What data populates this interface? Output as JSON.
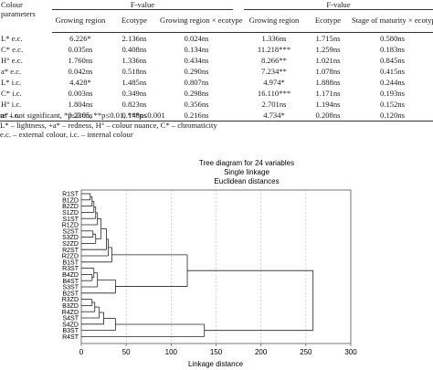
{
  "table": {
    "param_header": "Colour parameters",
    "group_header_1": "F-value",
    "group_header_2": "F-value",
    "columns_1": [
      "Growing region",
      "Ecotype",
      "Growing region × ecotype"
    ],
    "columns_2": [
      "Growing region",
      "Ecotype",
      "Stage of maturity × ecotype"
    ],
    "rows": [
      {
        "param": "L* e.c.",
        "v": [
          "6.226*",
          "2.136ns",
          "0.024ns",
          "1.336ns",
          "1.715ns",
          "0.580ns"
        ]
      },
      {
        "param": "C* e.c.",
        "v": [
          "0.035ns",
          "0.408ns",
          "0.134ns",
          "11.218***",
          "1.259ns",
          "0.183ns"
        ]
      },
      {
        "param": "H° e.c.",
        "v": [
          "1.760ns",
          "1.336ns",
          "0.434ns",
          "8.266**",
          "1.021ns",
          "0.845ns"
        ]
      },
      {
        "param": "a* e.c.",
        "v": [
          "0.042ns",
          "0.518ns",
          "0.290ns",
          "7.234**",
          "1.078ns",
          "0.415ns"
        ]
      },
      {
        "param": "L* i.c.",
        "v": [
          "4.428*",
          "1.485ns",
          "0.807ns",
          "4.974*",
          "1.888ns",
          "0.244ns"
        ]
      },
      {
        "param": "C* i.c.",
        "v": [
          "0.003ns",
          "0.349ns",
          "0.298ns",
          "16.110***",
          "1.171ns",
          "0.193ns"
        ]
      },
      {
        "param": "H° i.c.",
        "v": [
          "1.804ns",
          "0.823ns",
          "0.356ns",
          "2.701ns",
          "1.194ns",
          "0.152ns"
        ]
      },
      {
        "param": "a* i.c.",
        "v": [
          "0.236ns",
          "0.148ns",
          "0.216ns",
          "4.734*",
          "0.208ns",
          "0.120ns"
        ]
      }
    ]
  },
  "notes": {
    "line1": "ns – not significant, *p≤0.05, **p≤0.01, ***p≤0.001",
    "line2": "L* – lightness, +a* – redness, H° – colour nuance, C* – chromaticity",
    "line3": "e.c. – external colour, i.c. – internal colour"
  },
  "chart_data": {
    "type": "dendrogram",
    "title": "Tree diagram for 24 variables",
    "subtitle1": "Single linkage",
    "subtitle2": "Euclidean distances",
    "xlabel": "Linkage distance",
    "xlim": [
      0,
      300
    ],
    "x_ticks": [
      0,
      50,
      100,
      150,
      200,
      250,
      300
    ],
    "leaves": [
      "R1ST",
      "B1ZD",
      "B2ZD",
      "S1ZD",
      "S1ST",
      "R1ZD",
      "S2ST",
      "S3ZD",
      "S2ZD",
      "R2ST",
      "R2ZD",
      "B1ST",
      "R3ST",
      "B4ZD",
      "B4ST",
      "S3ST",
      "B2ST",
      "R3ZD",
      "B3ZD",
      "R4ZD",
      "S4ST",
      "S4ZD",
      "B3ST",
      "R4ST"
    ],
    "merges": [
      {
        "a": 0,
        "b": 1,
        "h": 10
      },
      {
        "a": 2,
        "b": 24,
        "h": 12
      },
      {
        "a": 3,
        "b": 25,
        "h": 14
      },
      {
        "a": 4,
        "b": 26,
        "h": 16
      },
      {
        "a": 5,
        "b": 27,
        "h": 18
      },
      {
        "a": 6,
        "b": 7,
        "h": 13
      },
      {
        "a": 8,
        "b": 29,
        "h": 16
      },
      {
        "a": 30,
        "b": 28,
        "h": 22
      },
      {
        "a": 9,
        "b": 31,
        "h": 28
      },
      {
        "a": 10,
        "b": 32,
        "h": 30
      },
      {
        "a": 11,
        "b": 33,
        "h": 34
      },
      {
        "a": 13,
        "b": 14,
        "h": 12
      },
      {
        "a": 12,
        "b": 35,
        "h": 14
      },
      {
        "a": 15,
        "b": 36,
        "h": 18
      },
      {
        "a": 16,
        "b": 37,
        "h": 38
      },
      {
        "a": 34,
        "b": 38,
        "h": 118
      },
      {
        "a": 17,
        "b": 18,
        "h": 12
      },
      {
        "a": 19,
        "b": 40,
        "h": 15
      },
      {
        "a": 20,
        "b": 41,
        "h": 20
      },
      {
        "a": 21,
        "b": 42,
        "h": 25
      },
      {
        "a": 22,
        "b": 43,
        "h": 38
      },
      {
        "a": 44,
        "b": 23,
        "h": 137
      },
      {
        "a": 39,
        "b": 45,
        "h": 258
      }
    ]
  }
}
